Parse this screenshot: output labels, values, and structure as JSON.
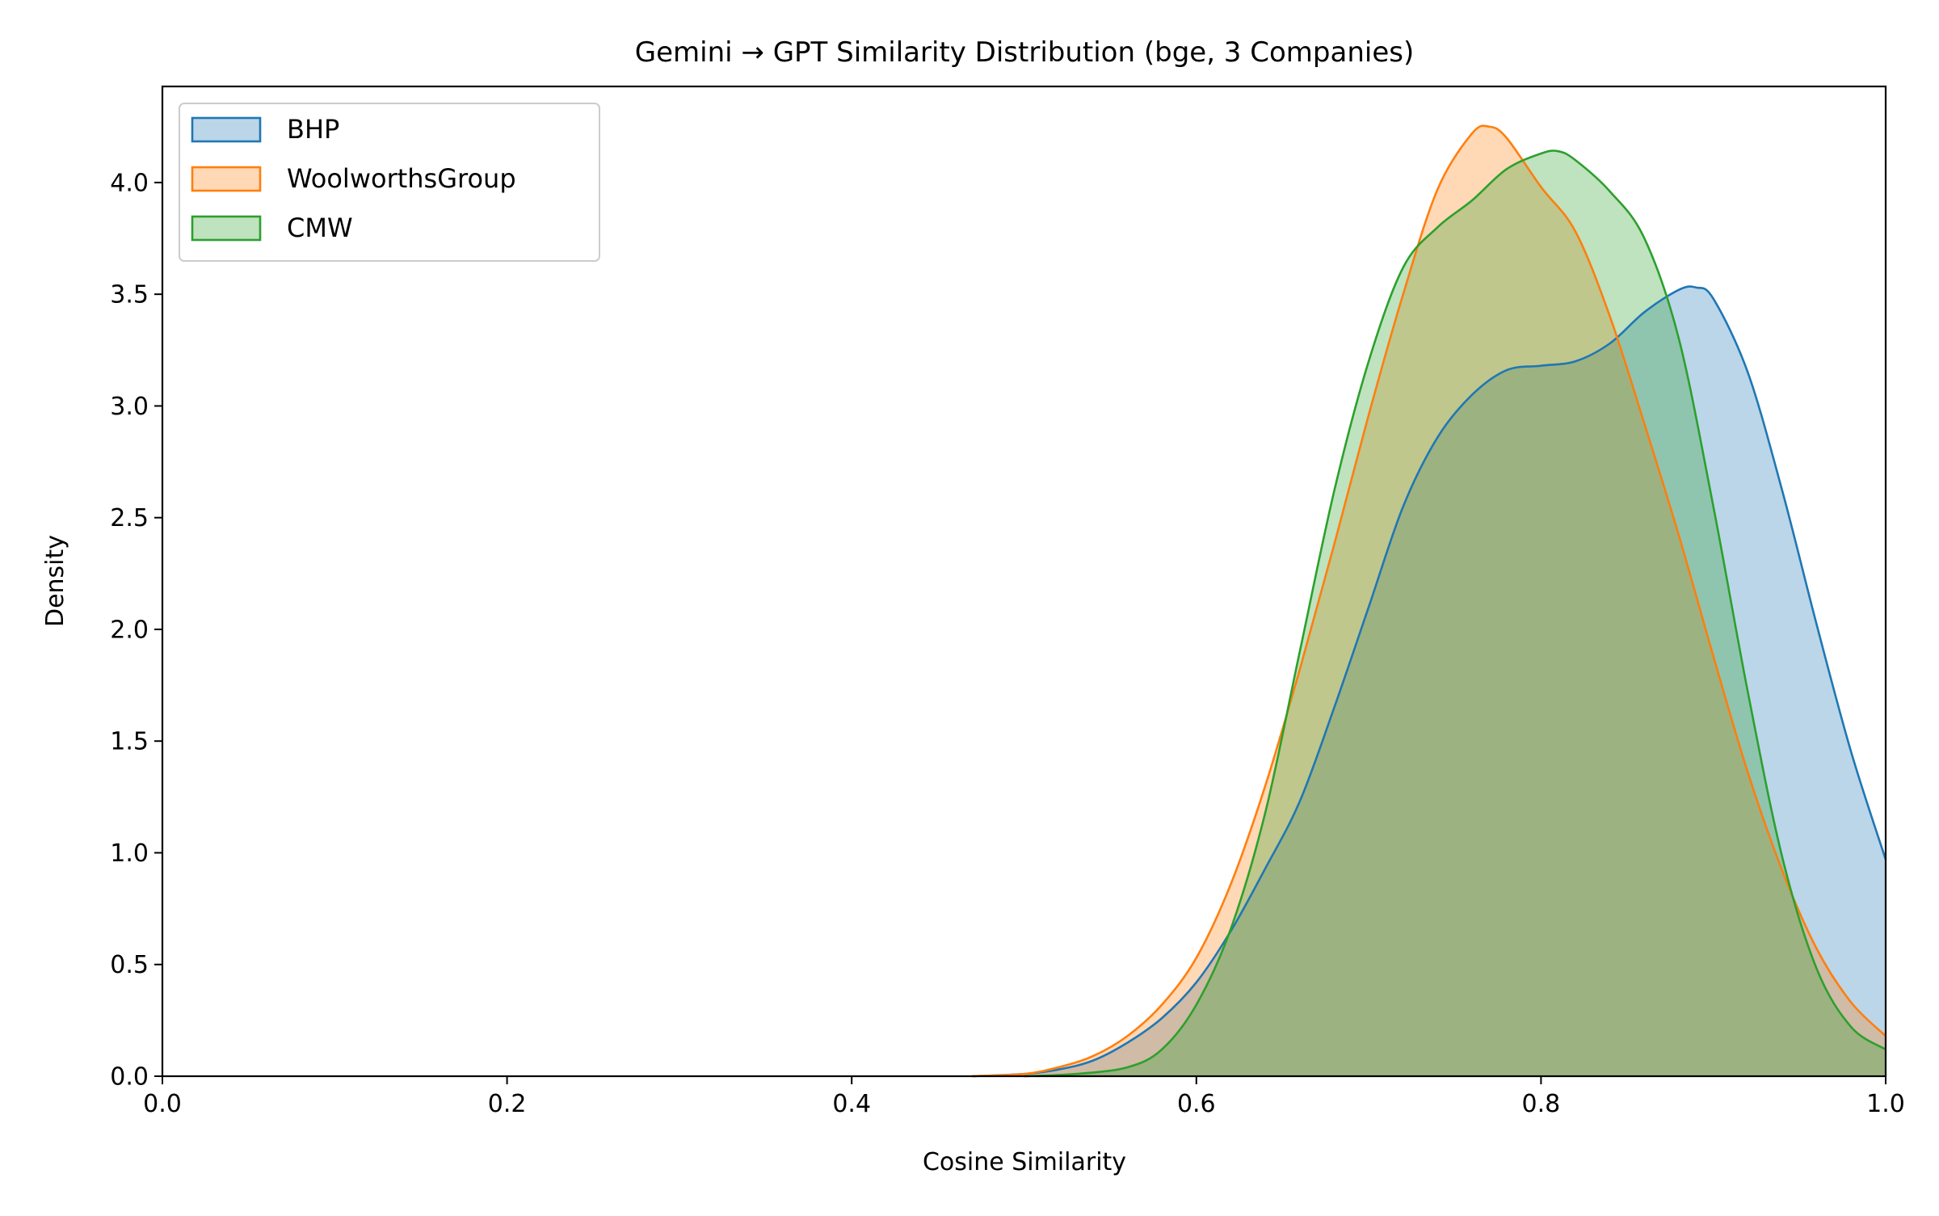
{
  "chart_data": {
    "type": "area",
    "title": "Gemini → GPT Similarity Distribution (bge, 3 Companies)",
    "xlabel": "Cosine Similarity",
    "ylabel": "Density",
    "xlim": [
      0.0,
      1.0
    ],
    "ylim": [
      0.0,
      4.43
    ],
    "xticks": [
      0.0,
      0.2,
      0.4,
      0.6,
      0.8,
      1.0
    ],
    "xtick_labels": [
      "0.0",
      "0.2",
      "0.4",
      "0.6",
      "0.8",
      "1.0"
    ],
    "yticks": [
      0.0,
      0.5,
      1.0,
      1.5,
      2.0,
      2.5,
      3.0,
      3.5,
      4.0
    ],
    "ytick_labels": [
      "0.0",
      "0.5",
      "1.0",
      "1.5",
      "2.0",
      "2.5",
      "3.0",
      "3.5",
      "4.0"
    ],
    "grid": false,
    "legend_position": "top-left",
    "series": [
      {
        "name": "BHP",
        "color": "#1f77b4",
        "fill": "#1f77b4",
        "x": [
          0.47,
          0.5,
          0.52,
          0.54,
          0.56,
          0.58,
          0.6,
          0.62,
          0.64,
          0.66,
          0.68,
          0.7,
          0.72,
          0.74,
          0.76,
          0.78,
          0.8,
          0.82,
          0.84,
          0.86,
          0.88,
          0.89,
          0.9,
          0.92,
          0.94,
          0.96,
          0.98,
          1.0
        ],
        "y": [
          0.0,
          0.01,
          0.03,
          0.07,
          0.15,
          0.26,
          0.42,
          0.65,
          0.93,
          1.23,
          1.65,
          2.1,
          2.55,
          2.86,
          3.05,
          3.16,
          3.18,
          3.2,
          3.28,
          3.42,
          3.52,
          3.53,
          3.48,
          3.15,
          2.62,
          2.02,
          1.45,
          0.97
        ]
      },
      {
        "name": "WoolworthsGroup",
        "color": "#ff7f0e",
        "fill": "#ff7f0e",
        "x": [
          0.47,
          0.5,
          0.52,
          0.54,
          0.56,
          0.58,
          0.6,
          0.62,
          0.64,
          0.66,
          0.68,
          0.7,
          0.72,
          0.74,
          0.76,
          0.77,
          0.78,
          0.8,
          0.82,
          0.84,
          0.86,
          0.88,
          0.9,
          0.92,
          0.94,
          0.96,
          0.98,
          1.0
        ],
        "y": [
          0.0,
          0.01,
          0.04,
          0.09,
          0.18,
          0.32,
          0.53,
          0.86,
          1.3,
          1.82,
          2.38,
          2.96,
          3.5,
          3.97,
          4.22,
          4.25,
          4.2,
          3.98,
          3.78,
          3.4,
          2.92,
          2.42,
          1.88,
          1.36,
          0.92,
          0.57,
          0.33,
          0.18
        ]
      },
      {
        "name": "CMW",
        "color": "#2ca02c",
        "fill": "#2ca02c",
        "x": [
          0.5,
          0.53,
          0.56,
          0.58,
          0.6,
          0.62,
          0.64,
          0.66,
          0.68,
          0.7,
          0.72,
          0.74,
          0.76,
          0.78,
          0.8,
          0.81,
          0.82,
          0.84,
          0.86,
          0.88,
          0.9,
          0.92,
          0.94,
          0.96,
          0.98,
          1.0
        ],
        "y": [
          0.0,
          0.01,
          0.04,
          0.12,
          0.32,
          0.66,
          1.18,
          1.9,
          2.62,
          3.2,
          3.62,
          3.8,
          3.92,
          4.06,
          4.13,
          4.14,
          4.1,
          3.96,
          3.75,
          3.3,
          2.55,
          1.72,
          0.98,
          0.48,
          0.22,
          0.12
        ]
      }
    ]
  }
}
